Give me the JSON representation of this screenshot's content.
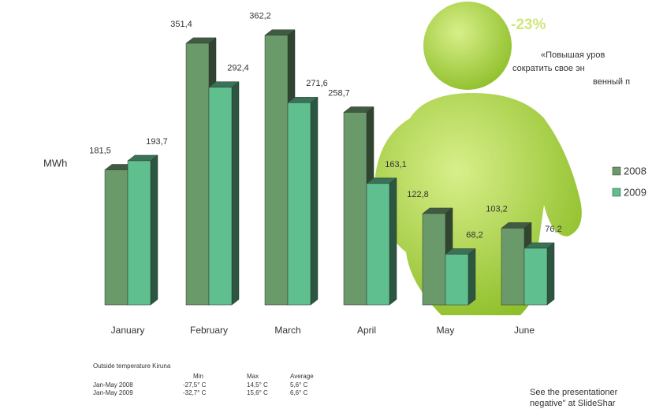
{
  "chart_data": {
    "type": "bar3d",
    "y_label": "MWh",
    "categories": [
      "January",
      "February",
      "March",
      "April",
      "May",
      "June"
    ],
    "series": [
      {
        "name": "2008",
        "color": "#6b9a6a",
        "values": [
          181.5,
          351.4,
          362.2,
          258.7,
          122.8,
          103.2
        ],
        "value_labels": [
          "181,5",
          "351,4",
          "362,2",
          "258,7",
          "122,8",
          "103,2"
        ]
      },
      {
        "name": "2009",
        "color": "#5fbf8f",
        "values": [
          193.7,
          292.4,
          271.6,
          163.1,
          68.2,
          76.2
        ],
        "value_labels": [
          "193,7",
          "292,4",
          "271,6",
          "163,1",
          "68,2",
          "76,2"
        ]
      }
    ],
    "ylim": [
      0,
      400
    ],
    "callout": "-23%",
    "quote": [
      "«Повышая уров",
      "сократить свое эн",
      "венный п"
    ],
    "table": {
      "title": "Outside temperature Kiruna",
      "header": [
        "Min",
        "Max",
        "Average"
      ],
      "rows": [
        [
          "Jan-May 2008",
          "-27,5° C",
          "14,5° C",
          "5,6° C"
        ],
        [
          "Jan-May 2009",
          "-32,7° C",
          "15,6° C",
          "6,6° C"
        ]
      ]
    },
    "footer": [
      "See the presentationer",
      "negative\" at SlideShar"
    ]
  }
}
